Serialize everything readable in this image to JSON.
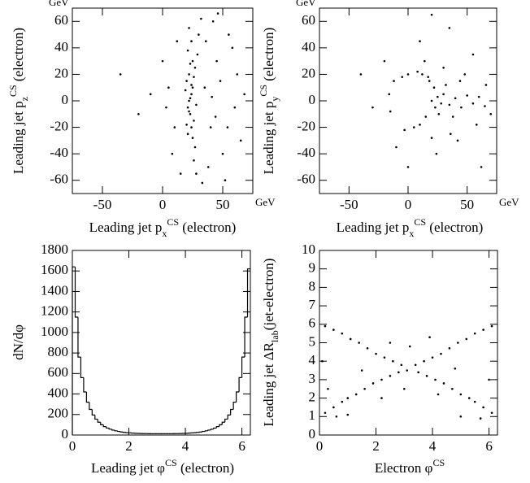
{
  "chart_data": [
    {
      "type": "scatter",
      "x_label": [
        "Leading jet p",
        "x",
        "CS",
        " (electron)"
      ],
      "y_label": [
        "Leading jet p",
        "z",
        "CS",
        " (electron)"
      ],
      "x_unit": "GeV",
      "y_unit": "GeV",
      "xlim": [
        -75,
        75
      ],
      "ylim": [
        -70,
        70
      ],
      "xticks": [
        -50,
        0,
        50
      ],
      "yticks": [
        -60,
        -40,
        -20,
        0,
        20,
        40,
        60
      ],
      "color": "#000000",
      "x": [
        22,
        24,
        21,
        25,
        23,
        20,
        26,
        22,
        24,
        27,
        21,
        25,
        23,
        19,
        28,
        22,
        24,
        26,
        20,
        23,
        25,
        29,
        21,
        27,
        24,
        26,
        30,
        22,
        28,
        32,
        35,
        40,
        45,
        50,
        55,
        60,
        38,
        42,
        48,
        52,
        58,
        65,
        62,
        44,
        36,
        33,
        46,
        54,
        68,
        41,
        5,
        10,
        0,
        -10,
        12,
        8,
        -20,
        15,
        -35,
        3
      ],
      "values": [
        0,
        5,
        -5,
        10,
        -10,
        15,
        -15,
        20,
        -20,
        25,
        -25,
        30,
        2,
        8,
        -3,
        -8,
        12,
        18,
        -18,
        28,
        -28,
        35,
        38,
        -35,
        45,
        -45,
        50,
        55,
        -55,
        62,
        10,
        -20,
        30,
        -40,
        50,
        -5,
        -50,
        60,
        15,
        -60,
        40,
        -30,
        20,
        -12,
        45,
        -62,
        66,
        -20,
        5,
        3,
        10,
        -20,
        30,
        5,
        45,
        -40,
        -10,
        -55,
        20,
        -5
      ]
    },
    {
      "type": "scatter",
      "x_label": [
        "Leading jet p",
        "x",
        "CS",
        " (electron)"
      ],
      "y_label": [
        "Leading jet p",
        "y",
        "CS",
        " (electron)"
      ],
      "x_unit": "GeV",
      "y_unit": "GeV",
      "xlim": [
        -75,
        75
      ],
      "ylim": [
        -70,
        70
      ],
      "xticks": [
        -50,
        0,
        50
      ],
      "yticks": [
        -60,
        -40,
        -20,
        0,
        20,
        40,
        60
      ],
      "color": "#000000",
      "x": [
        20,
        25,
        28,
        23,
        30,
        35,
        40,
        45,
        50,
        55,
        60,
        65,
        22,
        26,
        32,
        38,
        44,
        18,
        15,
        17,
        12,
        10,
        8,
        0,
        -5,
        -12,
        -15,
        -16,
        5,
        -3,
        14,
        20,
        30,
        36,
        48,
        58,
        66,
        70,
        42,
        55,
        24,
        10,
        -20,
        -30,
        -10,
        35,
        62,
        -40,
        0,
        20
      ],
      "values": [
        0,
        3,
        -2,
        -5,
        5,
        -3,
        2,
        -5,
        4,
        -2,
        3,
        -4,
        10,
        -10,
        12,
        -12,
        15,
        15,
        -12,
        18,
        20,
        -18,
        22,
        20,
        18,
        15,
        -8,
        5,
        -20,
        -22,
        30,
        -28,
        25,
        -25,
        20,
        -18,
        12,
        -10,
        -30,
        35,
        -40,
        45,
        30,
        -5,
        -35,
        55,
        -50,
        20,
        -50,
        65
      ]
    },
    {
      "type": "histogram",
      "x_label": [
        "Leading jet φ",
        "CS",
        " (electron)"
      ],
      "y_label": "dN/dφ",
      "xlim": [
        0,
        6.3
      ],
      "ylim": [
        0,
        1800
      ],
      "xticks": [
        0,
        2,
        4,
        6
      ],
      "yticks": [
        0,
        200,
        400,
        600,
        800,
        1000,
        1200,
        1400,
        1600,
        1800
      ],
      "color": "#000000",
      "bins": [
        0,
        0.1,
        0.2,
        0.3,
        0.4,
        0.5,
        0.6,
        0.7,
        0.8,
        0.9,
        1.0,
        1.1,
        1.2,
        1.3,
        1.4,
        1.5,
        1.6,
        1.7,
        1.8,
        1.9,
        2.0,
        2.1,
        2.2,
        2.3,
        2.4,
        2.5,
        2.6,
        2.7,
        2.8,
        2.9,
        3.0,
        3.1,
        3.2,
        3.3,
        3.4,
        3.5,
        3.6,
        3.7,
        3.8,
        3.9,
        4.0,
        4.1,
        4.2,
        4.3,
        4.4,
        4.5,
        4.6,
        4.7,
        4.8,
        4.9,
        5.0,
        5.1,
        5.2,
        5.3,
        5.4,
        5.5,
        5.6,
        5.7,
        5.8,
        5.9,
        6.0,
        6.1,
        6.2,
        6.3
      ],
      "values": [
        1640,
        1150,
        760,
        560,
        420,
        320,
        250,
        195,
        155,
        125,
        100,
        82,
        68,
        57,
        48,
        41,
        35,
        30,
        26,
        23,
        21,
        19,
        17,
        16,
        15,
        14,
        14,
        13,
        13,
        13,
        13,
        13,
        13,
        13,
        13,
        13,
        14,
        14,
        15,
        16,
        17,
        19,
        21,
        23,
        26,
        30,
        35,
        41,
        48,
        57,
        68,
        82,
        100,
        125,
        155,
        195,
        250,
        320,
        420,
        560,
        760,
        1150,
        1620
      ]
    },
    {
      "type": "scatter",
      "x_label": [
        "Electron φ",
        "CS"
      ],
      "y_label": [
        "Leading jet ΔR",
        "lab",
        "(jet-electron)"
      ],
      "xlim": [
        0,
        6.3
      ],
      "ylim": [
        0,
        10
      ],
      "xticks": [
        0,
        2,
        4,
        6
      ],
      "yticks": [
        0,
        1,
        2,
        3,
        4,
        5,
        6,
        7,
        8,
        9,
        10
      ],
      "color": "#000000",
      "x": [
        0.2,
        0.5,
        0.8,
        1.0,
        1.3,
        1.6,
        1.9,
        2.2,
        2.5,
        2.8,
        3.1,
        3.4,
        3.7,
        4.0,
        4.3,
        4.6,
        4.9,
        5.2,
        5.5,
        5.8,
        6.1,
        6.1,
        5.8,
        5.5,
        5.3,
        5.0,
        4.7,
        4.4,
        4.1,
        3.8,
        3.5,
        2.9,
        2.6,
        2.3,
        2.0,
        1.7,
        1.4,
        1.1,
        0.8,
        0.5,
        0.2,
        1.0,
        0.3,
        5.0,
        6.0,
        3.0,
        3.2,
        1.5,
        4.8,
        0.6,
        5.7,
        2.2,
        4.2,
        2.5,
        3.9,
        0.1
      ],
      "values": [
        1.2,
        1.5,
        1.8,
        2.0,
        2.2,
        2.5,
        2.8,
        3.0,
        3.2,
        3.4,
        3.5,
        3.8,
        4.0,
        4.2,
        4.4,
        4.7,
        5.0,
        5.2,
        5.5,
        5.7,
        5.9,
        1.2,
        1.5,
        1.8,
        2.0,
        2.2,
        2.5,
        2.8,
        3.0,
        3.2,
        3.4,
        3.8,
        4.0,
        4.2,
        4.4,
        4.7,
        5.0,
        5.2,
        5.5,
        5.7,
        5.9,
        1.1,
        2.5,
        1.0,
        3.0,
        2.5,
        4.8,
        3.5,
        3.6,
        1.0,
        0.9,
        2.0,
        2.2,
        5.0,
        5.3,
        4.0
      ]
    }
  ]
}
